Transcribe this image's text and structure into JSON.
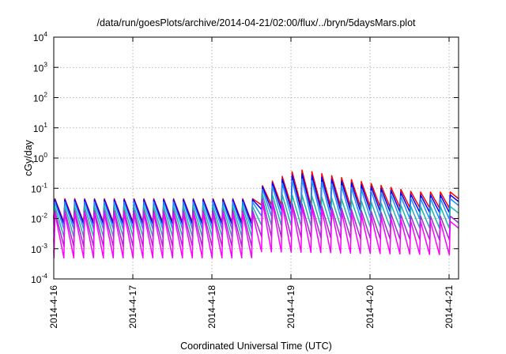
{
  "chart_data": {
    "type": "line",
    "title": "/data/run/goesPlots/archive/2014-04-21/02:00/flux/../bryn/5daysMars.plot",
    "xlabel": "Coordinated Universal Time (UTC)",
    "ylabel": "cGy/day",
    "yscale": "log",
    "ylim": [
      0.0001,
      10000
    ],
    "xlim": [
      0,
      5.12
    ],
    "grid": true,
    "x_ticks": [
      {
        "value": 0,
        "label": "2014-4-16"
      },
      {
        "value": 1,
        "label": "2014-4-17"
      },
      {
        "value": 2,
        "label": "2014-4-18"
      },
      {
        "value": 3,
        "label": "2014-4-19"
      },
      {
        "value": 4,
        "label": "2014-4-20"
      },
      {
        "value": 5,
        "label": "2014-4-21"
      }
    ],
    "y_ticks": [
      {
        "value": 0.0001,
        "base": "10",
        "exp": "-4"
      },
      {
        "value": 0.001,
        "base": "10",
        "exp": "-3"
      },
      {
        "value": 0.01,
        "base": "10",
        "exp": "-2"
      },
      {
        "value": 0.1,
        "base": "10",
        "exp": "-1"
      },
      {
        "value": 1,
        "base": "10",
        "exp": "0"
      },
      {
        "value": 10,
        "base": "10",
        "exp": "1"
      },
      {
        "value": 100,
        "base": "10",
        "exp": "2"
      },
      {
        "value": 1000,
        "base": "10",
        "exp": "3"
      },
      {
        "value": 10000,
        "base": "10",
        "exp": "4"
      }
    ],
    "cycle_days": 0.125,
    "event_start_x": 2.6,
    "series": [
      {
        "color": "#ff0000",
        "pre_peak": 0.045,
        "pre_min": 0.0075,
        "peak_max": 0.4,
        "post_min": 0.028,
        "end_peak": 0.075
      },
      {
        "color": "#0000ff",
        "pre_peak": 0.042,
        "pre_min": 0.0065,
        "peak_max": 0.3,
        "post_min": 0.02,
        "end_peak": 0.06
      },
      {
        "color": "#1e90ff",
        "pre_peak": 0.035,
        "pre_min": 0.0045,
        "peak_max": 0.2,
        "post_min": 0.012,
        "end_peak": 0.045
      },
      {
        "color": "#20b2aa",
        "pre_peak": 0.025,
        "pre_min": 0.0025,
        "peak_max": 0.06,
        "post_min": 0.006,
        "end_peak": 0.025
      },
      {
        "color": "#9932cc",
        "pre_peak": 0.018,
        "pre_min": 0.0012,
        "peak_max": 0.03,
        "post_min": 0.0025,
        "end_peak": 0.012
      },
      {
        "color": "#ff00ff",
        "pre_peak": 0.015,
        "pre_min": 0.0005,
        "peak_max": 0.025,
        "post_min": 0.0008,
        "end_peak": 0.008
      }
    ]
  }
}
